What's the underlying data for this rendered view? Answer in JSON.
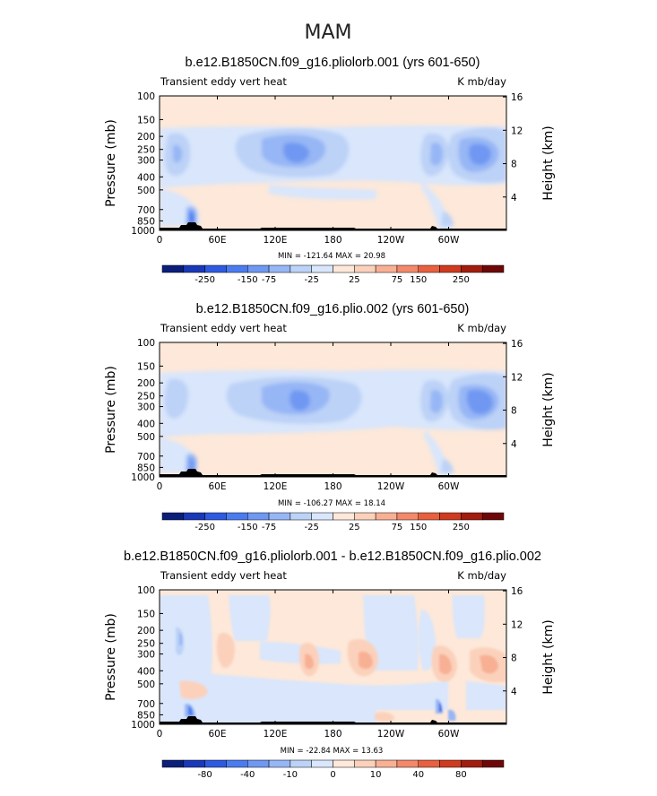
{
  "main_title": "MAM",
  "colors": {
    "diverging": [
      "#0a1e7a",
      "#1a39b8",
      "#2d5ae0",
      "#4a7cf0",
      "#6f98f2",
      "#96b6f5",
      "#bcd2f7",
      "#d9e6fb",
      "#fde8d9",
      "#fbd1bb",
      "#f8b094",
      "#f3896a",
      "#e8603f",
      "#cf3b1f",
      "#a11d0d",
      "#6e0808"
    ]
  },
  "chart_data": [
    {
      "type": "heatmap",
      "title": "b.e12.B1850CN.f09_g16.pliolorb.001 (yrs 601-650)",
      "left_label": "Transient eddy vert heat",
      "right_label": "K mb/day",
      "ylabel": "Pressure (mb)",
      "ylabel_right": "Height (km)",
      "x_ticks": [
        "0",
        "60E",
        "120E",
        "180",
        "120W",
        "60W"
      ],
      "y_ticks": [
        "100",
        "150",
        "200",
        "250",
        "300",
        "400",
        "500",
        "700",
        "850",
        "1000"
      ],
      "y_ticks_right": [
        "16",
        "12",
        "8",
        "4"
      ],
      "min_max": "MIN = -121.64   MAX = 20.98",
      "colorbar_labels": [
        "-250",
        "-150",
        "-75",
        "-25",
        "25",
        "75",
        "150",
        "250"
      ]
    },
    {
      "type": "heatmap",
      "title": "b.e12.B1850CN.f09_g16.plio.002 (yrs 601-650)",
      "left_label": "Transient eddy vert heat",
      "right_label": "K mb/day",
      "ylabel": "Pressure (mb)",
      "ylabel_right": "Height (km)",
      "x_ticks": [
        "0",
        "60E",
        "120E",
        "180",
        "120W",
        "60W"
      ],
      "y_ticks": [
        "100",
        "150",
        "200",
        "250",
        "300",
        "400",
        "500",
        "700",
        "850",
        "1000"
      ],
      "y_ticks_right": [
        "16",
        "12",
        "8",
        "4"
      ],
      "min_max": "MIN = -106.27   MAX = 18.14",
      "colorbar_labels": [
        "-250",
        "-150",
        "-75",
        "-25",
        "25",
        "75",
        "150",
        "250"
      ]
    },
    {
      "type": "heatmap",
      "title": "b.e12.B1850CN.f09_g16.pliolorb.001 - b.e12.B1850CN.f09_g16.plio.002",
      "left_label": "Transient eddy vert heat",
      "right_label": "K mb/day",
      "ylabel": "Pressure (mb)",
      "ylabel_right": "Height (km)",
      "x_ticks": [
        "0",
        "60E",
        "120E",
        "180",
        "120W",
        "60W"
      ],
      "y_ticks": [
        "100",
        "150",
        "200",
        "250",
        "300",
        "400",
        "500",
        "700",
        "850",
        "1000"
      ],
      "y_ticks_right": [
        "16",
        "12",
        "8",
        "4"
      ],
      "min_max": "MIN = -22.84   MAX = 13.63",
      "colorbar_labels": [
        "-80",
        "-40",
        "-10",
        "0",
        "10",
        "40",
        "80"
      ]
    }
  ]
}
